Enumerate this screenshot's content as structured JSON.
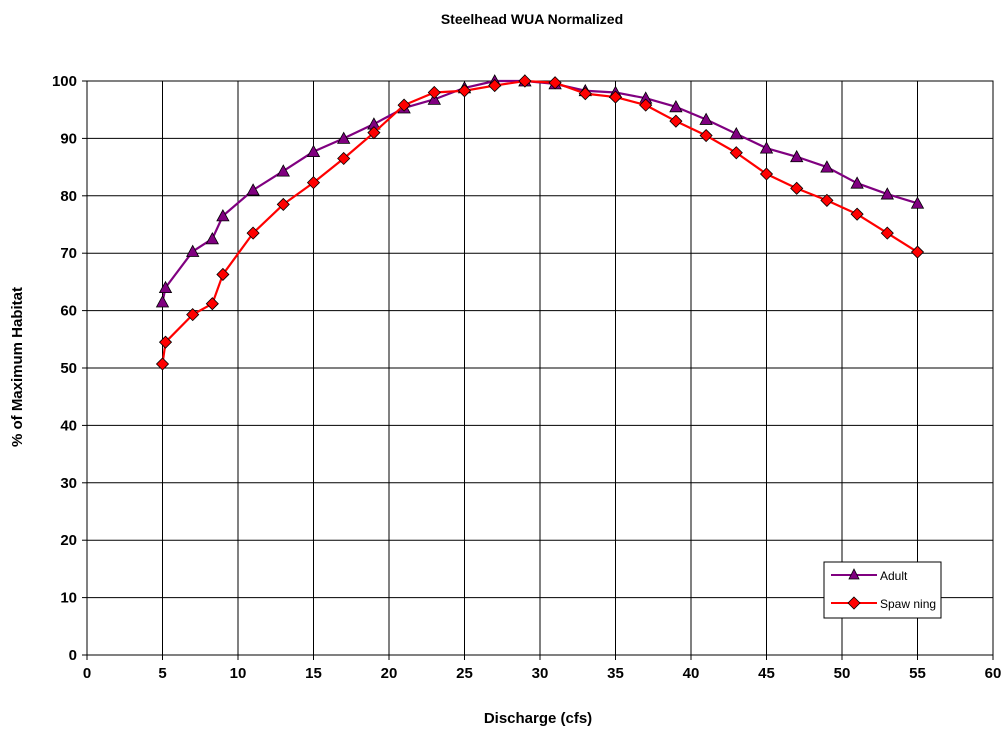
{
  "chart_data": {
    "type": "line",
    "title": "Steelhead WUA Normalized",
    "xlabel": "Discharge (cfs)",
    "ylabel": "% of Maximum Habitat",
    "xlim": [
      0,
      60
    ],
    "ylim": [
      0,
      100
    ],
    "xticks": [
      0,
      5,
      10,
      15,
      20,
      25,
      30,
      35,
      40,
      45,
      50,
      55,
      60
    ],
    "yticks": [
      0,
      10,
      20,
      30,
      40,
      50,
      60,
      70,
      80,
      90,
      100
    ],
    "grid": true,
    "legend_position": "bottom-right",
    "series": [
      {
        "name": "Adult",
        "color": "#800080",
        "marker": "triangle",
        "marker_color": "#800080",
        "points": [
          [
            5.0,
            61.5
          ],
          [
            5.2,
            64.0
          ],
          [
            7.0,
            70.3
          ],
          [
            8.3,
            72.5
          ],
          [
            9.0,
            76.5
          ],
          [
            11.0,
            81.0
          ],
          [
            13.0,
            84.3
          ],
          [
            15.0,
            87.7
          ],
          [
            17.0,
            90.0
          ],
          [
            19.0,
            92.5
          ],
          [
            21.0,
            95.3
          ],
          [
            23.0,
            96.8
          ],
          [
            25.0,
            98.8
          ],
          [
            27.0,
            100.0
          ],
          [
            29.0,
            100.0
          ],
          [
            31.0,
            99.5
          ],
          [
            33.0,
            98.3
          ],
          [
            35.0,
            98.0
          ],
          [
            37.0,
            97.0
          ],
          [
            39.0,
            95.5
          ],
          [
            41.0,
            93.3
          ],
          [
            43.0,
            90.8
          ],
          [
            45.0,
            88.3
          ],
          [
            47.0,
            86.8
          ],
          [
            49.0,
            85.0
          ],
          [
            51.0,
            82.2
          ],
          [
            53.0,
            80.3
          ],
          [
            55.0,
            78.7
          ]
        ]
      },
      {
        "name": "Spaw ning",
        "color": "#ff0000",
        "marker": "diamond",
        "marker_color": "#ff0000",
        "points": [
          [
            5.0,
            50.7
          ],
          [
            5.2,
            54.5
          ],
          [
            7.0,
            59.3
          ],
          [
            8.3,
            61.2
          ],
          [
            9.0,
            66.3
          ],
          [
            11.0,
            73.5
          ],
          [
            13.0,
            78.5
          ],
          [
            15.0,
            82.3
          ],
          [
            17.0,
            86.5
          ],
          [
            19.0,
            91.0
          ],
          [
            21.0,
            95.8
          ],
          [
            23.0,
            98.0
          ],
          [
            25.0,
            98.3
          ],
          [
            27.0,
            99.2
          ],
          [
            29.0,
            100.0
          ],
          [
            31.0,
            99.7
          ],
          [
            33.0,
            97.8
          ],
          [
            35.0,
            97.2
          ],
          [
            37.0,
            95.8
          ],
          [
            39.0,
            93.0
          ],
          [
            41.0,
            90.5
          ],
          [
            43.0,
            87.5
          ],
          [
            45.0,
            83.8
          ],
          [
            47.0,
            81.3
          ],
          [
            49.0,
            79.2
          ],
          [
            51.0,
            76.8
          ],
          [
            53.0,
            73.5
          ],
          [
            55.0,
            70.2
          ]
        ]
      }
    ]
  }
}
